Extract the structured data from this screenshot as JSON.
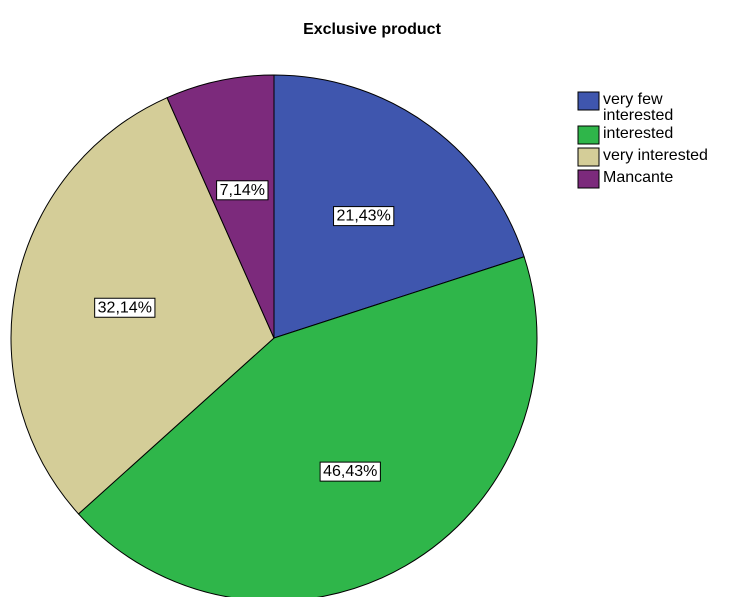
{
  "chart_data": {
    "type": "pie",
    "title": "Exclusive product",
    "legend_position": "top-right",
    "slices": [
      {
        "label": "very few interested",
        "legend_lines": [
          "very few",
          "interested"
        ],
        "value": 21.43,
        "data_label": "21,43%",
        "color": "#3F56AE"
      },
      {
        "label": "interested",
        "legend_lines": [
          "interested"
        ],
        "value": 46.43,
        "data_label": "46,43%",
        "color": "#2FB64A"
      },
      {
        "label": "very interested",
        "legend_lines": [
          "very interested"
        ],
        "value": 32.14,
        "data_label": "32,14%",
        "color": "#D4CD98"
      },
      {
        "label": "Mancante",
        "legend_lines": [
          "Mancante"
        ],
        "value": 7.14,
        "data_label": "7,14%",
        "color": "#7C2A7C"
      }
    ],
    "start_angle_deg": 0,
    "direction": "clockwise"
  }
}
